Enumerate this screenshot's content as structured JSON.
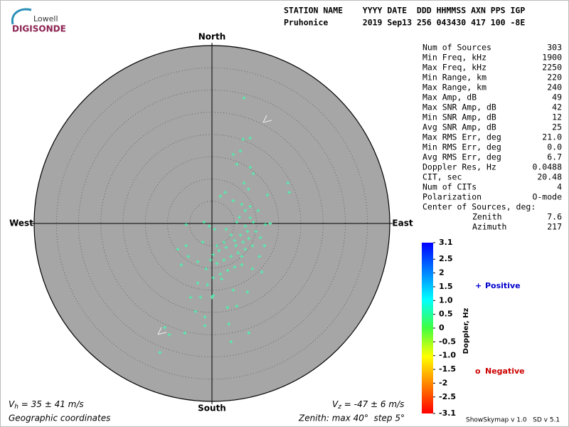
{
  "header": {
    "logo_top": "Lowell",
    "logo_bottom": "DIGISONDE",
    "columns_line": "STATION NAME    YYYY DATE  DDD HHMMSS AXN PPS IGP",
    "values_line": "Pruhonice       2019 Sep13 256 043430 417 100 -8E"
  },
  "stats": [
    [
      "Num of Sources",
      "303"
    ],
    [
      "Min Freq, kHz",
      "1900"
    ],
    [
      "Max Freq, kHz",
      "2250"
    ],
    [
      "Min Range, km",
      "220"
    ],
    [
      "Max Range, km",
      "240"
    ],
    [
      "Max Amp, dB",
      "49"
    ],
    [
      "Max SNR Amp, dB",
      "42"
    ],
    [
      "Min SNR Amp, dB",
      "12"
    ],
    [
      "Avg SNR Amp, dB",
      "25"
    ],
    [
      "Max RMS Err, deg",
      "21.0"
    ],
    [
      "Min RMS Err, deg",
      "0.0"
    ],
    [
      "Avg RMS Err, deg",
      "6.7"
    ],
    [
      "Doppler Res, Hz",
      "0.0488"
    ],
    [
      "CIT, sec",
      "20.48"
    ],
    [
      "Num of CITs",
      "4"
    ],
    [
      "Polarization",
      "O-mode"
    ]
  ],
  "center": {
    "title": "Center of Sources, deg:",
    "rows": [
      [
        "Zenith",
        "7.6"
      ],
      [
        "Azimuth",
        "217"
      ]
    ]
  },
  "chart_data": {
    "type": "skymap",
    "directions": {
      "north": "North",
      "south": "South",
      "west": "West",
      "east": "East"
    },
    "rlim": [
      0,
      40
    ],
    "rticks": [
      5,
      10,
      15,
      20,
      25,
      30,
      35,
      40
    ],
    "color": "#3dffb0",
    "x": [
      7.2,
      8.6,
      7.0,
      6.4,
      4.8,
      5.6,
      8.6,
      9.3,
      7.2,
      8.2,
      17.1,
      17.4,
      12.5,
      3.0,
      1.9,
      4.8,
      6.7,
      8.6,
      7.5,
      10.4,
      6.2,
      8.6,
      5.6,
      7.5,
      9.3,
      12.0,
      13.1,
      -1.8,
      -5.8,
      -0.6,
      0.6,
      3.2,
      4.3,
      6.4,
      8.0,
      9.9,
      10.9,
      11.8,
      7.0,
      5.4,
      3.2,
      1.6,
      0.3,
      -0.3,
      1.1,
      2.7,
      4.3,
      5.9,
      7.5,
      9.1,
      10.7,
      11.2,
      9.1,
      6.7,
      5.1,
      3.5,
      1.9,
      0.3,
      -1.3,
      -3.2,
      -5.8,
      -6.9,
      -3.2,
      -1.0,
      0.3,
      2.2,
      4.8,
      8.0,
      -4.8,
      -2.6,
      -3.7,
      -1.6,
      0,
      3.5,
      5.6,
      3.8,
      -1.6,
      -6.1,
      -9.6,
      -10.6,
      -11.7,
      4.3,
      8.3,
      -7.7,
      -5.3,
      -2.1,
      1.1,
      2.7,
      5.1,
      6.7,
      8.3
    ],
    "y": [
      28.2,
      19.2,
      18.9,
      16.3,
      15.5,
      13.3,
      12.6,
      11.2,
      9.1,
      7.7,
      9.1,
      7.0,
      6.4,
      7.0,
      6.1,
      5.1,
      4.3,
      3.8,
      2.9,
      2.9,
      1.4,
      1.3,
      0.3,
      -0.6,
      0.3,
      -0.2,
      0,
      0.3,
      -0.2,
      -0.6,
      -1.3,
      -1.3,
      -2.6,
      -2.6,
      -1.8,
      -1.8,
      -3.2,
      -5.0,
      -4.2,
      -5.0,
      -5.4,
      -6.1,
      -7.0,
      -8.2,
      -9.0,
      -8.2,
      -7.4,
      -6.6,
      -5.8,
      -5.0,
      -7.4,
      -10.9,
      -10.2,
      -9.3,
      -9.8,
      -10.6,
      -11.4,
      -12.2,
      -10.2,
      -8.6,
      -5.0,
      -9.3,
      -13.4,
      -13.8,
      -16.2,
      -12.5,
      -15.0,
      -15.4,
      -16.6,
      -16.6,
      -19.8,
      -21.0,
      -16.6,
      -18.9,
      -18.6,
      -22.6,
      -23.0,
      -24.6,
      -25.0,
      -23.4,
      -29.0,
      -26.6,
      -24.6,
      -5.8,
      -7.4,
      -4.2,
      -5.0,
      -4.2,
      -3.8,
      -7.4,
      -3.4
    ],
    "colorbar": {
      "label": "Doppler, Hz",
      "ylim": [
        -3.1,
        3.1
      ],
      "yticks": [
        3.1,
        2.5,
        2,
        1.5,
        {
          "value": 1,
          "label": "1.0"
        },
        0.5,
        0,
        -0.5,
        {
          "value": -1,
          "label": "-1.0"
        },
        -1.5,
        -2,
        -2.5,
        -3.1
      ],
      "colors": [
        "#ff0000",
        "#ff8000",
        "#ffff00",
        "#40ff40",
        "#00ffff",
        "#0080ff",
        "#0000ff"
      ]
    },
    "legend": [
      {
        "symbol": "+",
        "name": "Positive",
        "color": "#0000cc"
      },
      {
        "symbol": "o",
        "name": "Negative",
        "color": "#cc0000"
      }
    ],
    "vh": {
      "symbol": "V",
      "sub": "h",
      "text": " = 35 ± 41 m/s"
    },
    "vz": {
      "symbol": "V",
      "sub": "z",
      "text": " = -47 ± 6 m/s"
    },
    "coordinates": "Geographic coordinates",
    "zenith_note": "Zenith: max 40°  step 5°",
    "version": "ShowSkymap v 1.0   SD v 5.1"
  }
}
